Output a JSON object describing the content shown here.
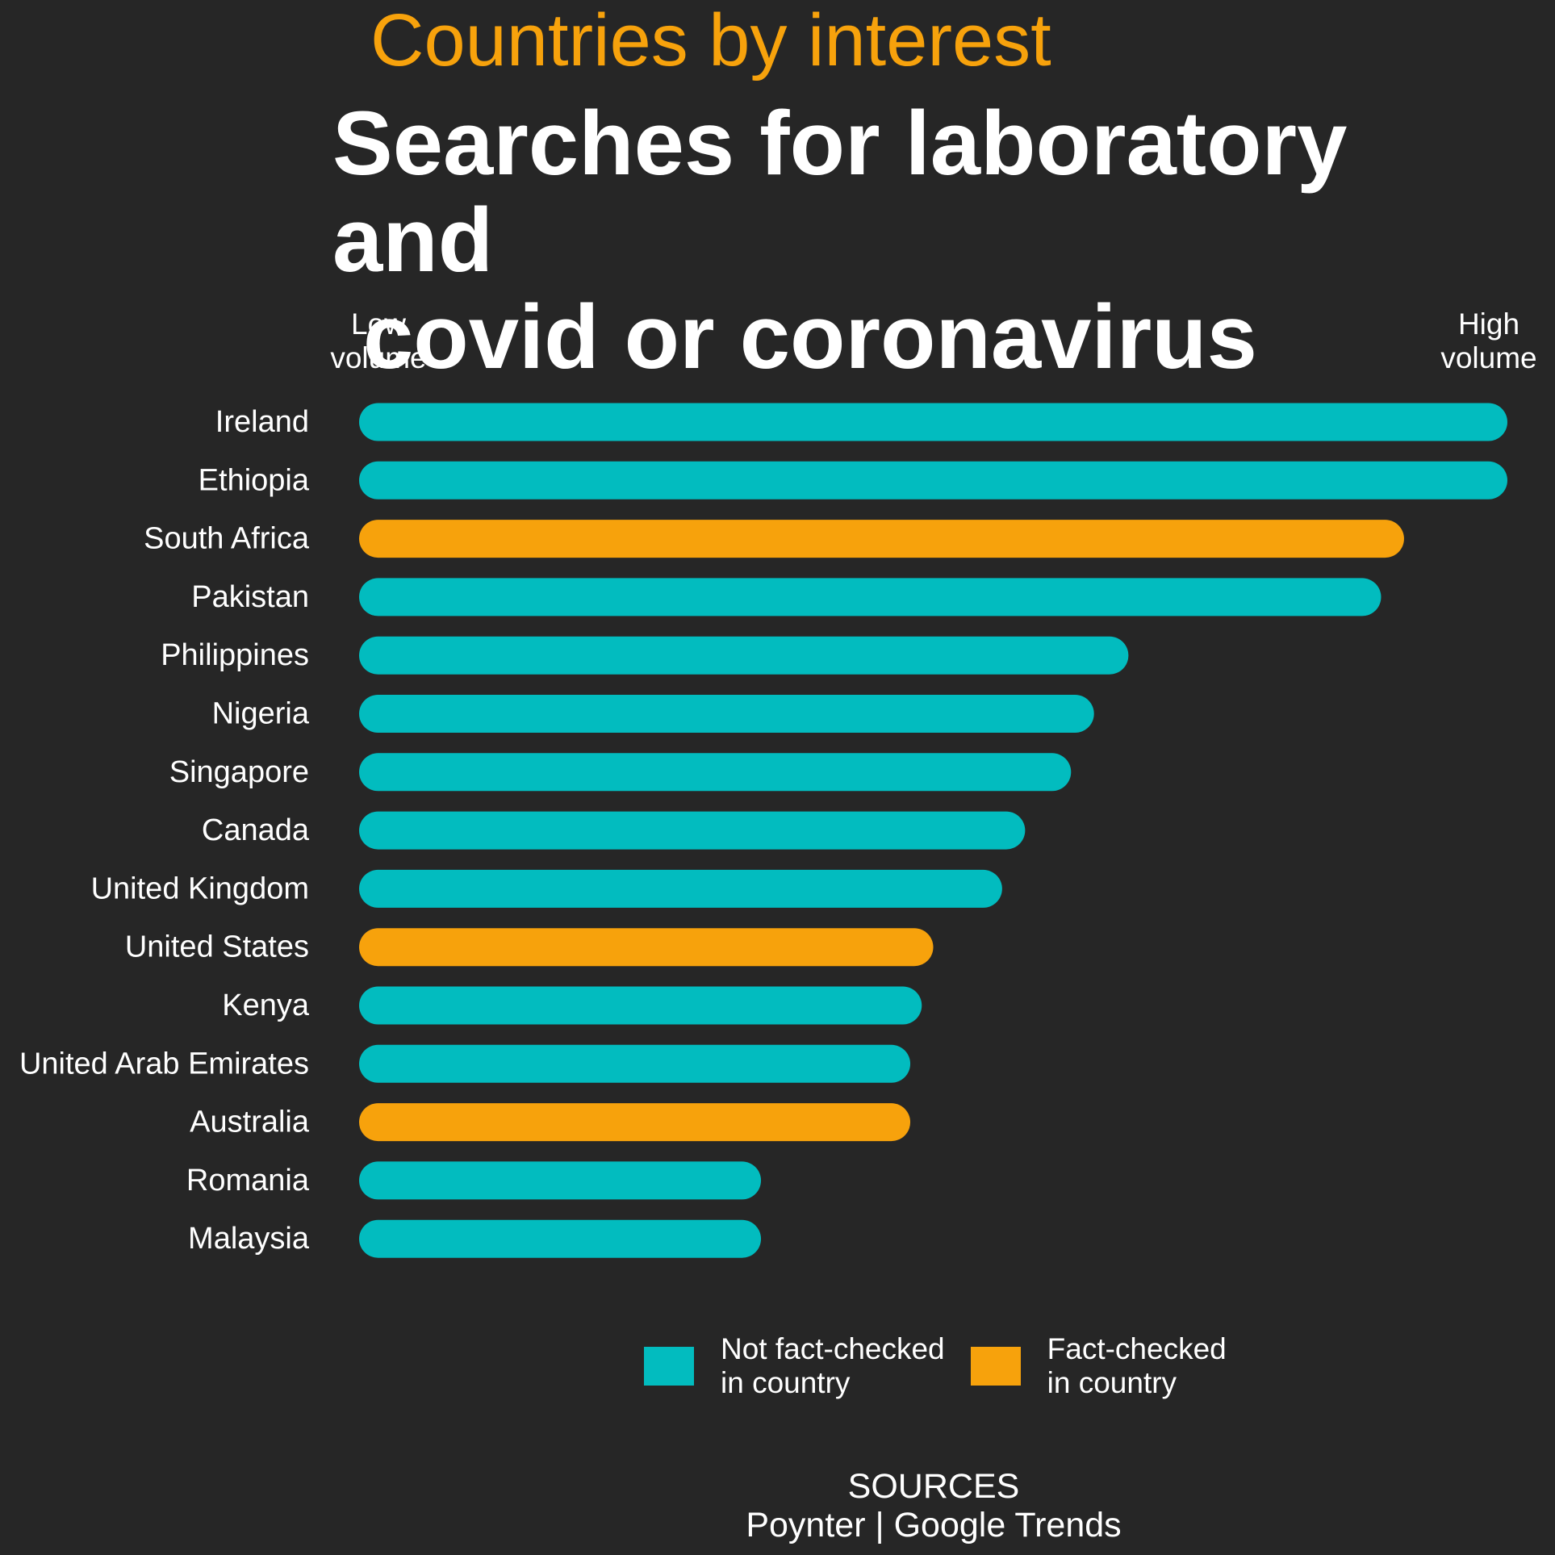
{
  "header": {
    "kicker": "Countries by interest",
    "title_line1": "Searches for laboratory and",
    "title_line2": "covid or coronavirus"
  },
  "axis": {
    "low_label_line1": "Low",
    "low_label_line2": "volume",
    "high_label_line1": "High",
    "high_label_line2": "volume"
  },
  "colors": {
    "not_fact_checked": "#02bcbf",
    "fact_checked": "#f7a20c",
    "background": "#262626"
  },
  "chart_data": {
    "type": "bar",
    "orientation": "horizontal",
    "categories": [
      "Ireland",
      "Ethiopia",
      "South Africa",
      "Pakistan",
      "Philippines",
      "Nigeria",
      "Singapore",
      "Canada",
      "United Kingdom",
      "United States",
      "Kenya",
      "United Arab Emirates",
      "Australia",
      "Romania",
      "Malaysia"
    ],
    "values": [
      100,
      100,
      91,
      89,
      67,
      64,
      62,
      58,
      56,
      50,
      49,
      48,
      48,
      35,
      35
    ],
    "fact_checked": [
      false,
      false,
      true,
      false,
      false,
      false,
      false,
      false,
      false,
      true,
      false,
      false,
      true,
      false,
      false
    ],
    "xlim": [
      0,
      100
    ],
    "grid": false,
    "legend": {
      "placement": "bottom",
      "entries": [
        {
          "label": "Not fact-checked\nin country",
          "color": "#02bcbf"
        },
        {
          "label": "Fact-checked\nin country",
          "color": "#f7a20c"
        }
      ]
    }
  },
  "sources": {
    "heading": "SOURCES",
    "text": "Poynter | Google Trends"
  }
}
